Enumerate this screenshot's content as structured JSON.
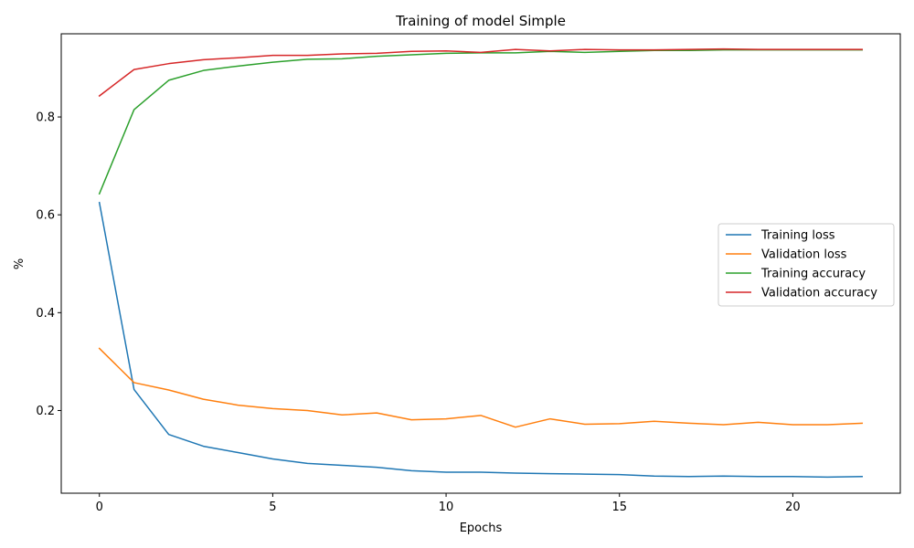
{
  "chart_data": {
    "type": "line",
    "title": "Training of model Simple",
    "xlabel": "Epochs",
    "ylabel": "%",
    "xlim": [
      -1.1,
      23.1
    ],
    "ylim": [
      0.031,
      0.97
    ],
    "xticks": [
      0,
      5,
      10,
      15,
      20
    ],
    "yticks": [
      0.2,
      0.4,
      0.6,
      0.8
    ],
    "grid": false,
    "legend_position": "center-right",
    "x": [
      0,
      1,
      2,
      3,
      4,
      5,
      6,
      7,
      8,
      9,
      10,
      11,
      12,
      13,
      14,
      15,
      16,
      17,
      18,
      19,
      20,
      21,
      22
    ],
    "series": [
      {
        "name": "Training loss",
        "color": "#1f77b4",
        "values": [
          0.625,
          0.243,
          0.151,
          0.127,
          0.114,
          0.101,
          0.092,
          0.088,
          0.084,
          0.077,
          0.074,
          0.074,
          0.072,
          0.071,
          0.07,
          0.069,
          0.066,
          0.065,
          0.066,
          0.065,
          0.065,
          0.064,
          0.065
        ]
      },
      {
        "name": "Validation loss",
        "color": "#ff7f0e",
        "values": [
          0.327,
          0.257,
          0.242,
          0.223,
          0.211,
          0.204,
          0.2,
          0.191,
          0.195,
          0.181,
          0.183,
          0.19,
          0.166,
          0.183,
          0.172,
          0.173,
          0.178,
          0.174,
          0.171,
          0.176,
          0.171,
          0.171,
          0.174
        ]
      },
      {
        "name": "Training accuracy",
        "color": "#2ca02c",
        "values": [
          0.643,
          0.815,
          0.875,
          0.895,
          0.904,
          0.912,
          0.918,
          0.919,
          0.924,
          0.927,
          0.93,
          0.931,
          0.931,
          0.934,
          0.932,
          0.934,
          0.936,
          0.936,
          0.937,
          0.937,
          0.937,
          0.937,
          0.937
        ]
      },
      {
        "name": "Validation accuracy",
        "color": "#d62728",
        "values": [
          0.843,
          0.897,
          0.909,
          0.917,
          0.921,
          0.926,
          0.926,
          0.929,
          0.93,
          0.934,
          0.935,
          0.932,
          0.938,
          0.935,
          0.938,
          0.937,
          0.937,
          0.938,
          0.939,
          0.938,
          0.938,
          0.938,
          0.938
        ]
      }
    ]
  }
}
